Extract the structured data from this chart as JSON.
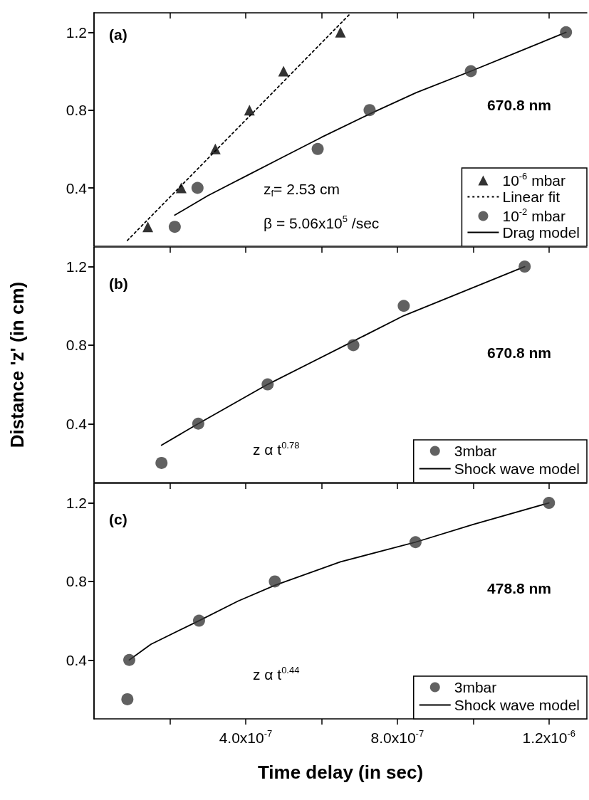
{
  "chart_data": [
    {
      "type": "scatter",
      "tick_labels": "y",
      "legend": "bottom right",
      "grid": false,
      "xlim": [
        0,
        1.3e-06
      ],
      "ylim": [
        0.1,
        1.3
      ],
      "xticks": [
        {
          "value": 2e-07,
          "label": null
        },
        {
          "value": 4e-07,
          "label": null
        },
        {
          "value": 6e-07,
          "label": null
        },
        {
          "value": 8e-07,
          "label": null
        },
        {
          "value": 1e-06,
          "label": null
        },
        {
          "value": 1.2e-06,
          "label": null
        }
      ],
      "yticks": [
        0.4,
        0.8,
        1.2
      ],
      "annotations": [
        "(a)",
        "670.8 nm",
        "z$_{f}$= 2.53 cm",
        "β = 5.06x10$^{5}$ /sec"
      ],
      "series": [
        {
          "name": "10$^{-6}$ mbar",
          "marker": "triangle",
          "color": "#000000",
          "x": [
            1.42e-07,
            2.3e-07,
            3.2e-07,
            4.1e-07,
            5e-07,
            6.5e-07
          ],
          "values": [
            0.2,
            0.4,
            0.6,
            0.8,
            1.0,
            1.2
          ]
        },
        {
          "name": "Linear fit",
          "type": "line",
          "marker": "none",
          "line_style": "dotted",
          "color": "#000000",
          "x": [
            8.8e-08,
            6.73e-07
          ],
          "values": [
            0.13,
            1.29
          ]
        },
        {
          "name": "10$^{-2}$ mbar",
          "marker": "circle",
          "color": "#3a3a3a",
          "x": [
            2.13e-07,
            2.73e-07,
            5.9e-07,
            7.27e-07,
            9.94e-07,
            1.245e-06
          ],
          "values": [
            0.2,
            0.4,
            0.6,
            0.8,
            1.0,
            1.2
          ]
        },
        {
          "name": "Drag model",
          "type": "line",
          "marker": "none",
          "line_style": "solid",
          "color": "#000000",
          "x": [
            2.13e-07,
            3e-07,
            4e-07,
            5e-07,
            6e-07,
            7.27e-07,
            8.5e-07,
            9.94e-07,
            1.12e-06,
            1.245e-06
          ],
          "values": [
            0.26,
            0.36,
            0.46,
            0.56,
            0.66,
            0.78,
            0.89,
            1.0,
            1.1,
            1.2
          ]
        }
      ]
    },
    {
      "type": "scatter",
      "tick_labels": "y",
      "legend": "bottom right",
      "grid": false,
      "ylabel": "Distance 'z' (in cm)",
      "xlim": [
        0,
        1.3e-06
      ],
      "ylim": [
        0.1,
        1.3
      ],
      "xticks": [
        {
          "value": 2e-07,
          "label": null
        },
        {
          "value": 4e-07,
          "label": null
        },
        {
          "value": 6e-07,
          "label": null
        },
        {
          "value": 8e-07,
          "label": null
        },
        {
          "value": 1e-06,
          "label": null
        },
        {
          "value": 1.2e-06,
          "label": null
        }
      ],
      "yticks": [
        0.4,
        0.8,
        1.2
      ],
      "annotations": [
        "(b)",
        "670.8 nm",
        "z α t$^{0.78}$"
      ],
      "series": [
        {
          "name": "3mbar",
          "marker": "circle",
          "color": "#3a3a3a",
          "x": [
            1.78e-07,
            2.75e-07,
            4.58e-07,
            6.84e-07,
            8.17e-07,
            1.136e-06
          ],
          "values": [
            0.2,
            0.4,
            0.6,
            0.8,
            1.0,
            1.2
          ]
        },
        {
          "name": "Shock wave model",
          "type": "line",
          "marker": "none",
          "line_style": "solid",
          "color": "#000000",
          "x": [
            1.78e-07,
            2.75e-07,
            4.58e-07,
            6.84e-07,
            8.17e-07,
            1.136e-06
          ],
          "values": [
            0.29,
            0.4,
            0.6,
            0.82,
            0.95,
            1.2
          ]
        }
      ]
    },
    {
      "type": "scatter",
      "legend": "bottom right",
      "grid": false,
      "xlabel": "Time delay (in sec)",
      "xlim": [
        0,
        1.3e-06
      ],
      "ylim": [
        0.1,
        1.3
      ],
      "xticks": [
        {
          "value": 2e-07,
          "label": null
        },
        {
          "value": 4e-07,
          "label": "4.0x10$^{-7}$"
        },
        {
          "value": 6e-07,
          "label": null
        },
        {
          "value": 8e-07,
          "label": "8.0x10$^{-7}$"
        },
        {
          "value": 1e-06,
          "label": null
        },
        {
          "value": 1.2e-06,
          "label": "1.2x10$^{-6}$"
        }
      ],
      "yticks": [
        0.4,
        0.8,
        1.2
      ],
      "annotations": [
        "(c)",
        "478.8 nm",
        "z α t$^{0.44}$"
      ],
      "series": [
        {
          "name": "3mbar",
          "marker": "circle",
          "color": "#3a3a3a",
          "x": [
            8.8e-08,
            9.3e-08,
            2.77e-07,
            4.77e-07,
            8.48e-07,
            1.2e-06
          ],
          "values": [
            0.2,
            0.4,
            0.6,
            0.8,
            1.0,
            1.2
          ]
        },
        {
          "name": "Shock wave model",
          "type": "line",
          "marker": "none",
          "line_style": "solid",
          "color": "#000000",
          "x": [
            9.3e-08,
            1.5e-07,
            2.77e-07,
            3.8e-07,
            4.77e-07,
            6.5e-07,
            8.48e-07,
            1e-06,
            1.2e-06
          ],
          "values": [
            0.4,
            0.48,
            0.6,
            0.7,
            0.78,
            0.9,
            1.0,
            1.09,
            1.2
          ]
        }
      ]
    }
  ]
}
